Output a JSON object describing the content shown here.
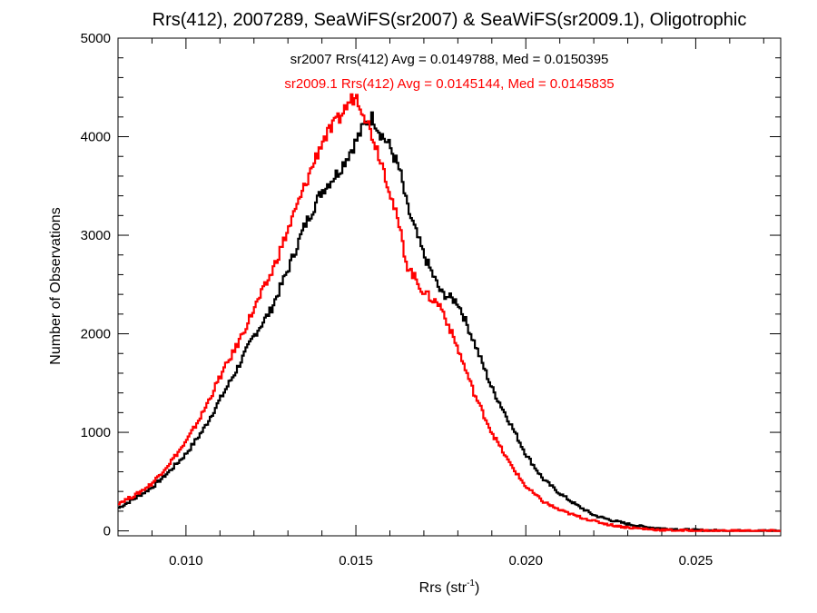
{
  "chart_data": {
    "type": "line",
    "title": "Rrs(412), 2007289, SeaWiFS(sr2007) & SeaWiFS(sr2009.1), Oligotrophic",
    "xlabel": "Rrs (str",
    "xlabel_sup": "-1",
    "xlabel_end": ")",
    "ylabel": "Number of Observations",
    "xlim": [
      0.008,
      0.0275
    ],
    "ylim": [
      -50,
      5000
    ],
    "x_ticks": [
      0.01,
      0.015,
      0.02,
      0.025
    ],
    "x_tick_labels": [
      "0.010",
      "0.015",
      "0.020",
      "0.025"
    ],
    "y_ticks": [
      0,
      1000,
      2000,
      3000,
      4000,
      5000
    ],
    "y_tick_labels": [
      "0",
      "1000",
      "2000",
      "3000",
      "4000",
      "5000"
    ],
    "grid": false,
    "annotations": [
      {
        "text": "sr2007 Rrs(412) Avg = 0.0149788, Med = 0.0150395",
        "color": "#000000"
      },
      {
        "text": "sr2009.1 Rrs(412) Avg = 0.0145144, Med = 0.0145835",
        "color": "#ff0000"
      }
    ],
    "series": [
      {
        "color": "#000000",
        "points": [
          [
            0.008,
            230
          ],
          [
            0.0085,
            330
          ],
          [
            0.009,
            440
          ],
          [
            0.0095,
            600
          ],
          [
            0.01,
            780
          ],
          [
            0.0105,
            1020
          ],
          [
            0.011,
            1330
          ],
          [
            0.0115,
            1640
          ],
          [
            0.012,
            1980
          ],
          [
            0.0125,
            2240
          ],
          [
            0.013,
            2650
          ],
          [
            0.0135,
            3100
          ],
          [
            0.014,
            3450
          ],
          [
            0.0145,
            3650
          ],
          [
            0.015,
            3950
          ],
          [
            0.0153,
            4150
          ],
          [
            0.0155,
            4200
          ],
          [
            0.0157,
            4050
          ],
          [
            0.016,
            3900
          ],
          [
            0.0163,
            3650
          ],
          [
            0.0165,
            3300
          ],
          [
            0.017,
            2800
          ],
          [
            0.0175,
            2420
          ],
          [
            0.018,
            2320
          ],
          [
            0.0185,
            1900
          ],
          [
            0.019,
            1450
          ],
          [
            0.0195,
            1120
          ],
          [
            0.02,
            780
          ],
          [
            0.0205,
            530
          ],
          [
            0.021,
            380
          ],
          [
            0.0215,
            260
          ],
          [
            0.022,
            160
          ],
          [
            0.0225,
            110
          ],
          [
            0.023,
            70
          ],
          [
            0.0235,
            40
          ],
          [
            0.024,
            25
          ],
          [
            0.0245,
            15
          ],
          [
            0.025,
            8
          ],
          [
            0.0255,
            4
          ],
          [
            0.026,
            2
          ],
          [
            0.0265,
            1
          ],
          [
            0.0275,
            0
          ]
        ]
      },
      {
        "color": "#ff0000",
        "points": [
          [
            0.008,
            280
          ],
          [
            0.0085,
            360
          ],
          [
            0.009,
            480
          ],
          [
            0.0095,
            680
          ],
          [
            0.01,
            900
          ],
          [
            0.0105,
            1200
          ],
          [
            0.011,
            1560
          ],
          [
            0.0115,
            1880
          ],
          [
            0.012,
            2250
          ],
          [
            0.0125,
            2600
          ],
          [
            0.013,
            3050
          ],
          [
            0.0135,
            3500
          ],
          [
            0.014,
            3950
          ],
          [
            0.0145,
            4180
          ],
          [
            0.0148,
            4350
          ],
          [
            0.015,
            4420
          ],
          [
            0.0152,
            4280
          ],
          [
            0.0155,
            4000
          ],
          [
            0.0158,
            3700
          ],
          [
            0.016,
            3450
          ],
          [
            0.0163,
            3050
          ],
          [
            0.0165,
            2700
          ],
          [
            0.017,
            2420
          ],
          [
            0.0175,
            2280
          ],
          [
            0.018,
            1850
          ],
          [
            0.0185,
            1380
          ],
          [
            0.019,
            1000
          ],
          [
            0.0195,
            700
          ],
          [
            0.02,
            450
          ],
          [
            0.0205,
            300
          ],
          [
            0.021,
            210
          ],
          [
            0.0215,
            150
          ],
          [
            0.022,
            100
          ],
          [
            0.0225,
            60
          ],
          [
            0.023,
            35
          ],
          [
            0.0235,
            20
          ],
          [
            0.024,
            10
          ],
          [
            0.0245,
            5
          ],
          [
            0.025,
            2
          ],
          [
            0.026,
            1
          ],
          [
            0.0275,
            0
          ]
        ]
      }
    ]
  }
}
